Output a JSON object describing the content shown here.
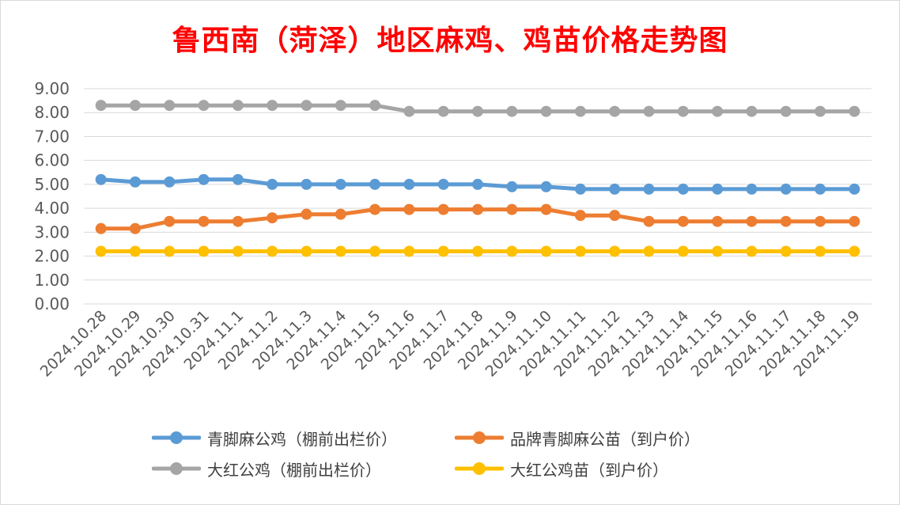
{
  "chart_data": {
    "type": "line",
    "title": "鲁西南（菏泽）地区麻鸡、鸡苗价格走势图",
    "xlabel": "",
    "ylabel": "",
    "ylim": [
      0,
      9
    ],
    "y_ticks": [
      "0.00",
      "1.00",
      "2.00",
      "3.00",
      "4.00",
      "5.00",
      "6.00",
      "7.00",
      "8.00",
      "9.00"
    ],
    "grid": "horizontal",
    "legend_position": "bottom",
    "categories": [
      "2024.10.28",
      "2024.10.29",
      "2024.10.30",
      "2024.10.31",
      "2024.11.1",
      "2024.11.2",
      "2024.11.3",
      "2024.11.4",
      "2024.11.5",
      "2024.11.6",
      "2024.11.7",
      "2024.11.8",
      "2024.11.9",
      "2024.11.10",
      "2024.11.11",
      "2024.11.12",
      "2024.11.13",
      "2024.11.14",
      "2024.11.15",
      "2024.11.16",
      "2024.11.17",
      "2024.11.18",
      "2024.11.19"
    ],
    "series": [
      {
        "name": "青脚麻公鸡（棚前出栏价）",
        "color": "#5B9BD5",
        "values": [
          5.2,
          5.1,
          5.1,
          5.2,
          5.2,
          5.0,
          5.0,
          5.0,
          5.0,
          5.0,
          5.0,
          5.0,
          4.9,
          4.9,
          4.8,
          4.8,
          4.8,
          4.8,
          4.8,
          4.8,
          4.8,
          4.8,
          4.8
        ]
      },
      {
        "name": "品牌青脚麻公苗（到户价）",
        "color": "#ED7D31",
        "values": [
          3.15,
          3.15,
          3.45,
          3.45,
          3.45,
          3.6,
          3.75,
          3.75,
          3.95,
          3.95,
          3.95,
          3.95,
          3.95,
          3.95,
          3.7,
          3.7,
          3.45,
          3.45,
          3.45,
          3.45,
          3.45,
          3.45,
          3.45
        ]
      },
      {
        "name": "大红公鸡（棚前出栏价）",
        "color": "#A5A5A5",
        "values": [
          8.3,
          8.3,
          8.3,
          8.3,
          8.3,
          8.3,
          8.3,
          8.3,
          8.3,
          8.05,
          8.05,
          8.05,
          8.05,
          8.05,
          8.05,
          8.05,
          8.05,
          8.05,
          8.05,
          8.05,
          8.05,
          8.05,
          8.05
        ]
      },
      {
        "name": "大红公鸡苗（到户价）",
        "color": "#FFC000",
        "values": [
          2.2,
          2.2,
          2.2,
          2.2,
          2.2,
          2.2,
          2.2,
          2.2,
          2.2,
          2.2,
          2.2,
          2.2,
          2.2,
          2.2,
          2.2,
          2.2,
          2.2,
          2.2,
          2.2,
          2.2,
          2.2,
          2.2,
          2.2
        ]
      }
    ]
  },
  "colors": {
    "title": "#FF0000",
    "axis_text": "#595959",
    "gridline": "#D9D9D9",
    "frame": "#D9D9D9"
  }
}
